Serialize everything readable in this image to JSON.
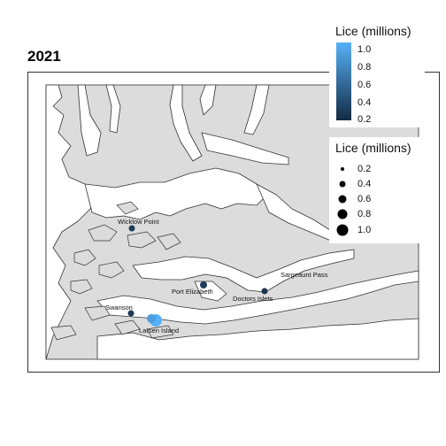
{
  "year_title": "2021",
  "legend_color": {
    "title": "Lice (millions)",
    "ticks": [
      "1.0",
      "0.8",
      "0.6",
      "0.4",
      "0.2"
    ],
    "colors": [
      "#56b1f7",
      "#132b43"
    ]
  },
  "legend_size": {
    "title": "Lice (millions)",
    "entries": [
      {
        "label": "0.2",
        "value": 0.2
      },
      {
        "label": "0.4",
        "value": 0.4
      },
      {
        "label": "0.6",
        "value": 0.6
      },
      {
        "label": "0.8",
        "value": 0.8
      },
      {
        "label": "1.0",
        "value": 1.0
      }
    ]
  },
  "sites": [
    {
      "name": "Wicklow Point",
      "lice": 0.3
    },
    {
      "name": "Port Elizabeth",
      "lice": 0.35
    },
    {
      "name": "Doctors Islets",
      "lice": 0.25
    },
    {
      "name": "Sargeaunt Pass",
      "lice": 0.0
    },
    {
      "name": "Swanson",
      "lice": 0.3
    },
    {
      "name": "Larsen Island",
      "lice": 1.0
    }
  ],
  "colors": {
    "land": "#dcdcdc",
    "water": "#ffffff",
    "coast": "#333333"
  }
}
